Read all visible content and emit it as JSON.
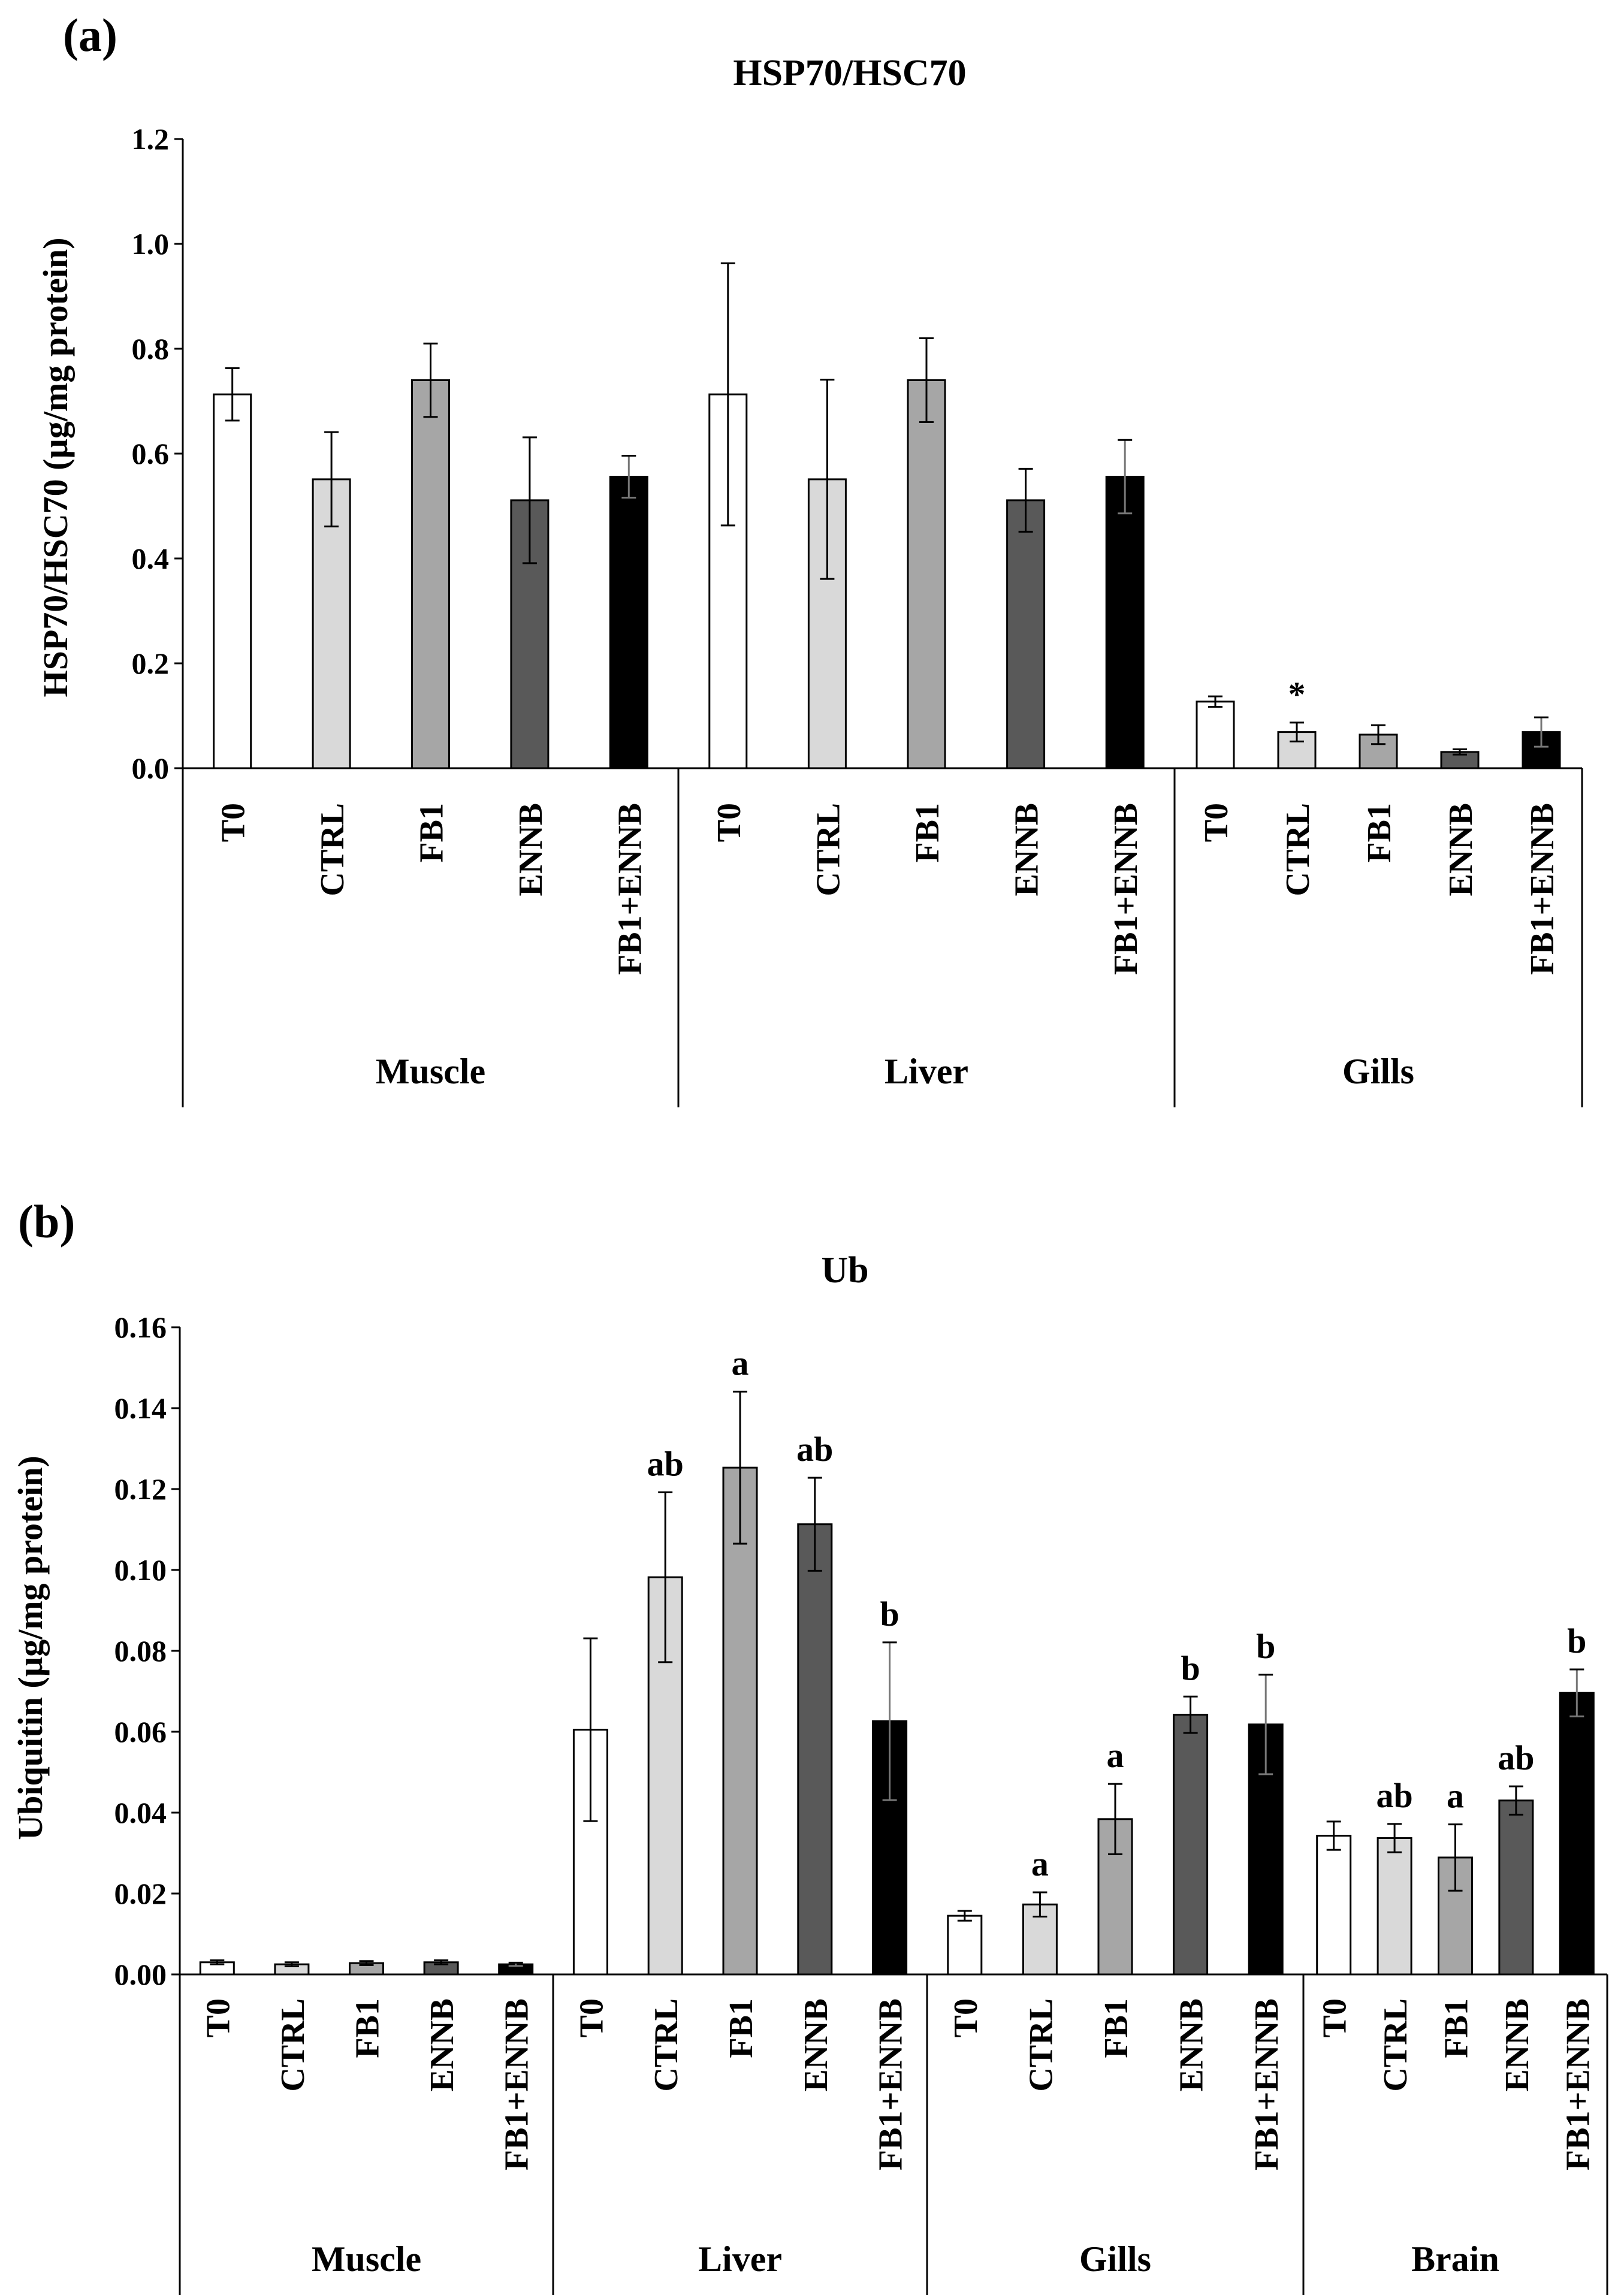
{
  "chart_data": [
    {
      "panel": "(a)",
      "type": "bar",
      "title": "HSP70/HSC70",
      "xlabel": "",
      "ylabel": "HSP70/HSC70 (µg/mg protein)",
      "ylim": [
        0,
        1.2
      ],
      "yticks": [
        "0.0",
        "0.2",
        "0.4",
        "0.6",
        "0.8",
        "1.0",
        "1.2"
      ],
      "categories": [
        "T0",
        "CTRL",
        "FB1",
        "ENNB",
        "FB1+ENNB"
      ],
      "series_colors": [
        "#ffffff",
        "#d9d9d9",
        "#a6a6a6",
        "#595959",
        "#000000"
      ],
      "groups": [
        {
          "name": "Muscle",
          "values": [
            0.713,
            0.551,
            0.74,
            0.511,
            0.556
          ],
          "errors": [
            0.05,
            0.09,
            0.07,
            0.12,
            0.04
          ],
          "annotations": [
            "",
            "",
            "",
            "",
            ""
          ]
        },
        {
          "name": "Liver",
          "values": [
            0.713,
            0.551,
            0.74,
            0.511,
            0.556
          ],
          "errors": [
            0.25,
            0.19,
            0.08,
            0.06,
            0.07
          ],
          "annotations": [
            "",
            "",
            "",
            "",
            ""
          ]
        },
        {
          "name": "Gills",
          "values": [
            0.127,
            0.069,
            0.064,
            0.031,
            0.069
          ],
          "errors": [
            0.01,
            0.018,
            0.018,
            0.005,
            0.028
          ],
          "annotations": [
            "",
            "*",
            "",
            "",
            ""
          ]
        }
      ]
    },
    {
      "panel": "(b)",
      "type": "bar",
      "title": "Ub",
      "xlabel": "",
      "ylabel": "Ubiquitin (µg/mg protein)",
      "ylim": [
        0,
        0.16
      ],
      "yticks": [
        "0.00",
        "0.02",
        "0.04",
        "0.06",
        "0.08",
        "0.10",
        "0.12",
        "0.14",
        "0.16"
      ],
      "categories": [
        "T0",
        "CTRL",
        "FB1",
        "ENNB",
        "FB1+ENNB"
      ],
      "series_colors": [
        "#ffffff",
        "#d9d9d9",
        "#a6a6a6",
        "#595959",
        "#000000"
      ],
      "groups": [
        {
          "name": "Muscle",
          "values": [
            0.003,
            0.0025,
            0.0028,
            0.003,
            0.0025
          ],
          "errors": [
            0.0005,
            0.0005,
            0.0005,
            0.0005,
            0.0004
          ],
          "annotations": [
            "",
            "",
            "",
            "",
            ""
          ]
        },
        {
          "name": "Liver",
          "values": [
            0.0605,
            0.0982,
            0.1253,
            0.1113,
            0.0626
          ],
          "errors": [
            0.0226,
            0.021,
            0.0188,
            0.0115,
            0.0195
          ],
          "annotations": [
            "",
            "ab",
            "a",
            "ab",
            "b"
          ]
        },
        {
          "name": "Gills",
          "values": [
            0.0145,
            0.0173,
            0.0384,
            0.0642,
            0.0618
          ],
          "errors": [
            0.0012,
            0.003,
            0.0087,
            0.0045,
            0.0123
          ],
          "annotations": [
            "",
            "a",
            "a",
            "b",
            "b"
          ]
        },
        {
          "name": "Brain",
          "values": [
            0.0343,
            0.0337,
            0.0289,
            0.043,
            0.0696
          ],
          "errors": [
            0.0035,
            0.0035,
            0.0082,
            0.0035,
            0.0058
          ],
          "annotations": [
            "",
            "ab",
            "a",
            "ab",
            "b"
          ]
        }
      ]
    }
  ]
}
